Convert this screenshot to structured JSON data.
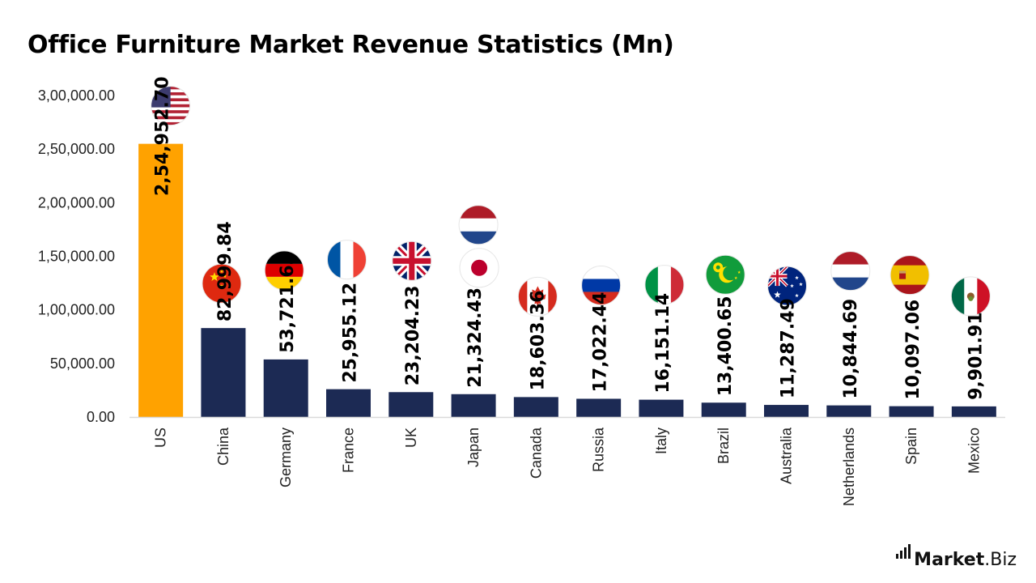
{
  "title": "Office Furniture Market Revenue Statistics (Mn)",
  "brand": {
    "name_bold": "Market",
    "name_rest": ".Biz"
  },
  "chart_data": {
    "type": "bar",
    "title": "Office Furniture Market Revenue Statistics (Mn)",
    "xlabel": "",
    "ylabel": "",
    "ylim": [
      0,
      300000
    ],
    "yticks": [
      0,
      50000,
      100000,
      150000,
      200000,
      250000,
      300000
    ],
    "ytick_labels": [
      "0.00",
      "50,000.00",
      "1,00,000.00",
      "1,50,000.00",
      "2,00,000.00",
      "2,50,000.00",
      "3,00,000.00"
    ],
    "grid": false,
    "legend": "none",
    "categories": [
      "US",
      "China",
      "Germany",
      "France",
      "UK",
      "Japan",
      "Canada",
      "Russia",
      "Italy",
      "Brazil",
      "Australia",
      "Netherlands",
      "Spain",
      "Mexico"
    ],
    "values": [
      254952.7,
      82999.84,
      53721.63,
      25955.12,
      23204.23,
      21324.43,
      18603.36,
      17022.44,
      16151.14,
      13400.65,
      11287.49,
      10844.69,
      10097.06,
      9901.91
    ],
    "data_labels": [
      "2,54,952.70",
      "82,999.84",
      "53,721.63",
      "25,955.12",
      "23,204.23",
      "21,324.43",
      "18,603.36",
      "17,022.44",
      "16,151.14",
      "13,400.65",
      "11,287.49",
      "10,844.69",
      "10,097.06",
      "9,901.91"
    ],
    "flag_icons": [
      "us-flag-icon",
      "china-flag-icon",
      "germany-flag-icon",
      "france-flag-icon",
      "uk-flag-icon",
      "japan-flag-icon",
      "canada-flag-icon",
      "russia-flag-icon",
      "italy-flag-icon",
      "brazil-flag-icon",
      "australia-flag-icon",
      "netherlands-flag-icon",
      "spain-flag-icon",
      "mexico-flag-icon"
    ],
    "colors": {
      "highlight": "#FFA200",
      "bar": "#1C2A54",
      "axis": "#d9d9d9"
    }
  }
}
